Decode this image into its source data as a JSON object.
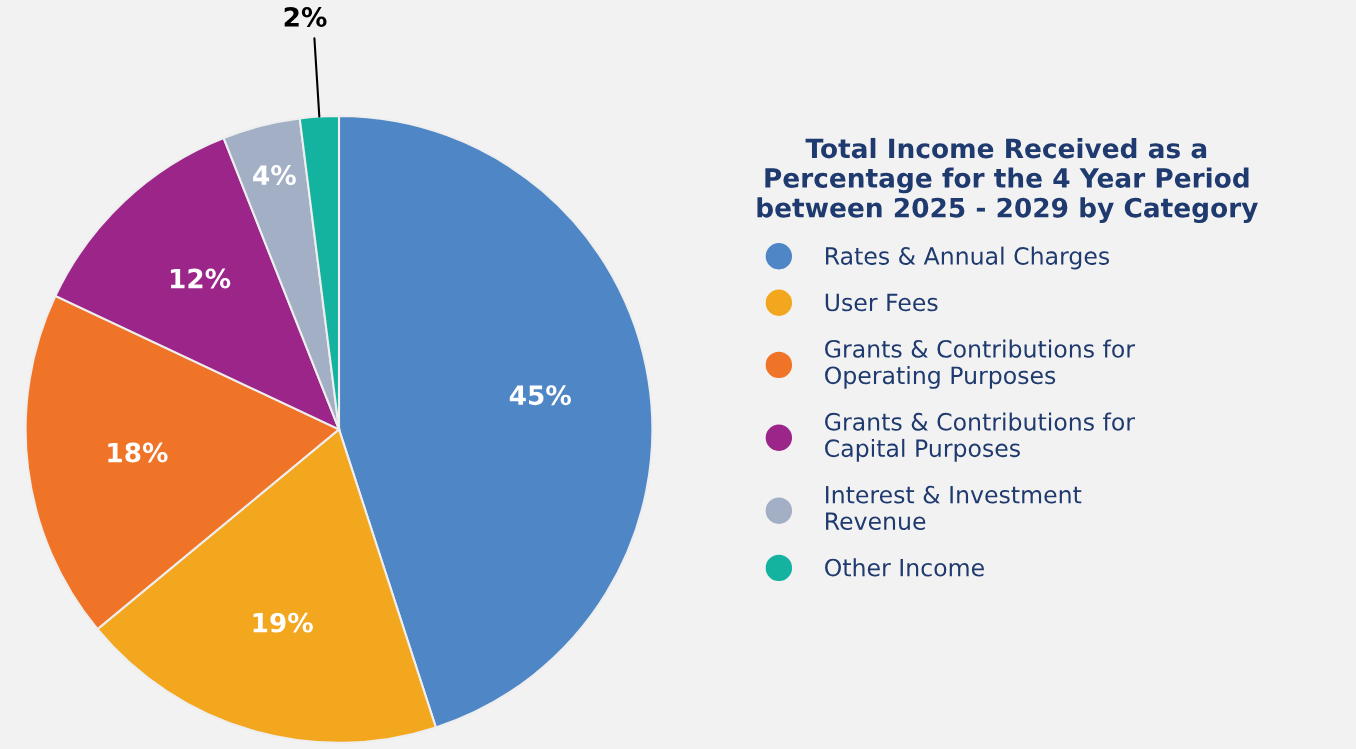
{
  "chart_data": {
    "type": "pie",
    "legend_title": "Total Income Received as a Percentage for the 4 Year Period between 2025 - 2029 by Category",
    "categories": [
      "Rates & Annual Charges",
      "User Fees",
      "Grants & Contributions for Operating Purposes",
      "Grants & Contributions for Capital Purposes",
      "Interest & Investment Revenue",
      "Other Income"
    ],
    "values": [
      45,
      19,
      18,
      12,
      4,
      2
    ],
    "value_labels": [
      "45%",
      "19%",
      "18%",
      "12%",
      "4%",
      "2%"
    ],
    "colors": [
      "#4e86c6",
      "#f2a71f",
      "#f07427",
      "#9c258a",
      "#a2afc4",
      "#13b3a0"
    ],
    "legend": "right"
  }
}
